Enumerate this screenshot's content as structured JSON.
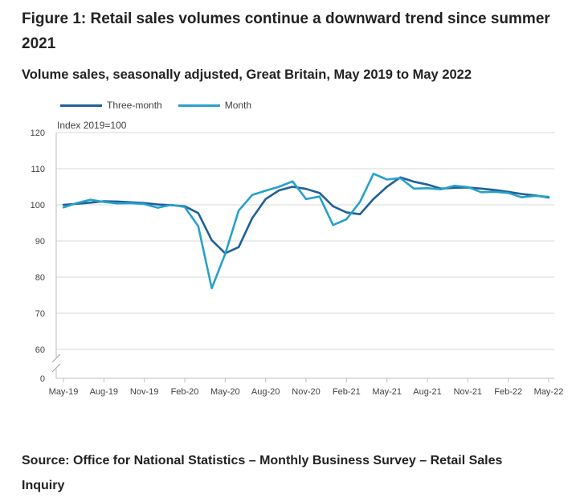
{
  "title": "Figure 1: Retail sales volumes continue a downward trend since summer 2021",
  "subtitle": "Volume sales, seasonally adjusted, Great Britain, May 2019 to May 2022",
  "source": "Source: Office for National Statistics – Monthly Business Survey – Retail Sales Inquiry",
  "colors": {
    "three_month": "#206095",
    "month": "#27a0cc",
    "grid": "#d9d9d9",
    "axis": "#bebebe",
    "text": "#414042"
  },
  "chart_data": {
    "type": "line",
    "title": "Figure 1: Retail sales volumes continue a downward trend since summer 2021",
    "subtitle": "Volume sales, seasonally adjusted, Great Britain, May 2019 to May 2022",
    "ylabel": "Index 2019=100",
    "xlabel": "",
    "ylim": [
      60,
      120
    ],
    "yticks": [
      "120",
      "110",
      "100",
      "90",
      "80",
      "70",
      "60"
    ],
    "y_break_label": "0",
    "grid": true,
    "legend_position": "top-left",
    "x": [
      "May-19",
      "Jun-19",
      "Jul-19",
      "Aug-19",
      "Sep-19",
      "Oct-19",
      "Nov-19",
      "Dec-19",
      "Jan-20",
      "Feb-20",
      "Mar-20",
      "Apr-20",
      "May-20",
      "Jun-20",
      "Jul-20",
      "Aug-20",
      "Sep-20",
      "Oct-20",
      "Nov-20",
      "Dec-20",
      "Jan-21",
      "Feb-21",
      "Mar-21",
      "Apr-21",
      "May-21",
      "Jun-21",
      "Jul-21",
      "Aug-21",
      "Sep-21",
      "Oct-21",
      "Nov-21",
      "Dec-21",
      "Jan-22",
      "Feb-22",
      "Mar-22",
      "Apr-22",
      "May-22"
    ],
    "xtick_labels": [
      "May-19",
      "Aug-19",
      "Nov-19",
      "Feb-20",
      "May-20",
      "Aug-20",
      "Nov-20",
      "Feb-21",
      "May-21",
      "Aug-21",
      "Nov-21",
      "Feb-22",
      "May-22"
    ],
    "series": [
      {
        "name": "Three-month",
        "values": [
          100.0,
          100.3,
          100.6,
          101.0,
          100.9,
          100.7,
          100.5,
          100.1,
          99.9,
          99.6,
          97.7,
          90.2,
          86.6,
          88.3,
          96.3,
          101.6,
          104.0,
          105.0,
          104.4,
          103.3,
          99.6,
          97.9,
          97.4,
          101.6,
          105.0,
          107.6,
          106.4,
          105.6,
          104.5,
          104.7,
          104.8,
          104.5,
          104.1,
          103.6,
          103.0,
          102.6,
          102.0
        ]
      },
      {
        "name": "Month",
        "values": [
          99.3,
          100.5,
          101.4,
          100.8,
          100.4,
          100.5,
          100.2,
          99.2,
          100.0,
          99.4,
          94.1,
          76.9,
          86.4,
          98.4,
          102.7,
          103.9,
          105.0,
          106.5,
          101.6,
          102.3,
          94.4,
          96.0,
          100.8,
          108.6,
          107.0,
          107.4,
          104.5,
          104.6,
          104.3,
          105.3,
          104.9,
          103.5,
          103.6,
          103.3,
          102.1,
          102.5,
          102.2
        ]
      }
    ]
  }
}
